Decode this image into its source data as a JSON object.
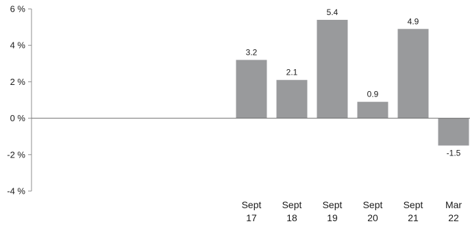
{
  "chart_data": {
    "type": "bar",
    "categories": [
      {
        "line1": "Sept",
        "line2": "17"
      },
      {
        "line1": "Sept",
        "line2": "18"
      },
      {
        "line1": "Sept",
        "line2": "19"
      },
      {
        "line1": "Sept",
        "line2": "20"
      },
      {
        "line1": "Sept",
        "line2": "21"
      },
      {
        "line1": "Mar",
        "line2": "22"
      }
    ],
    "values": [
      3.2,
      2.1,
      5.4,
      0.9,
      4.9,
      -1.5
    ],
    "value_labels": [
      "3.2",
      "2.1",
      "5.4",
      "0.9",
      "4.9",
      "-1.5"
    ],
    "ylim": [
      -4,
      6
    ],
    "yticks": [
      {
        "value": 6,
        "label": "6 %"
      },
      {
        "value": 4,
        "label": "4 %"
      },
      {
        "value": 2,
        "label": "2 %"
      },
      {
        "value": 0,
        "label": "0 %"
      },
      {
        "value": -2,
        "label": "-2 %"
      },
      {
        "value": -4,
        "label": "-4 %"
      }
    ],
    "title": "",
    "xlabel": "",
    "ylabel": "",
    "grid": false,
    "legend": "none",
    "colors": {
      "bar": "#999a9c",
      "axis": "#8c8c8c",
      "zero_line": "#6e6e6e",
      "text": "#1a1a1a"
    }
  }
}
